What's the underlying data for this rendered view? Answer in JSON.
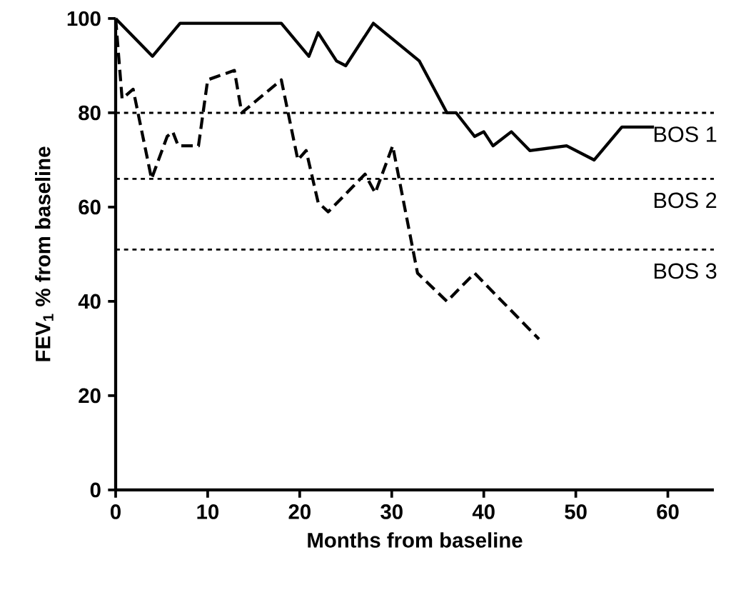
{
  "chart_data": {
    "type": "line",
    "xlabel": "Months from baseline",
    "ylabel": "FEV$_{1}$ % from baseline",
    "xlim": [
      0,
      65
    ],
    "ylim": [
      0,
      100
    ],
    "xticks": [
      0,
      10,
      20,
      30,
      40,
      50,
      60
    ],
    "yticks": [
      0,
      20,
      40,
      60,
      80,
      100
    ],
    "series": [
      {
        "color": "#000000",
        "line_style": "solid",
        "x": [
          0,
          4,
          7,
          18,
          21,
          22,
          24,
          25,
          28,
          33,
          36,
          37,
          39,
          40,
          41,
          43,
          45,
          49,
          52,
          55,
          58.5
        ],
        "values": [
          100,
          92,
          99,
          99,
          92,
          97,
          91,
          90,
          99,
          91,
          80,
          80,
          75,
          76,
          73,
          76,
          72,
          73,
          70,
          77,
          77
        ]
      },
      {
        "color": "#000000",
        "line_style": "dashed",
        "x": [
          0,
          0.7,
          1.9,
          3.9,
          5.6,
          6.2,
          6.8,
          9,
          10,
          12.9,
          13.7,
          18,
          19.8,
          20.7,
          22,
          23.1,
          27.1,
          28.2,
          30.1,
          32.8,
          36,
          39,
          46
        ],
        "values": [
          100,
          83,
          85,
          66,
          75,
          76,
          73,
          73,
          87,
          89,
          80,
          87,
          70,
          72,
          61,
          59,
          67,
          63,
          73,
          46,
          40,
          46,
          32
        ]
      }
    ],
    "ref_lines": [
      {
        "axis": "y",
        "value": 80,
        "label": "BOS 1",
        "line_style": "dotted",
        "color": "#000000"
      },
      {
        "axis": "y",
        "value": 66,
        "label": "BOS 2",
        "line_style": "dotted",
        "color": "#000000"
      },
      {
        "axis": "y",
        "value": 51,
        "label": "BOS 3",
        "line_style": "dotted",
        "color": "#000000"
      }
    ]
  }
}
